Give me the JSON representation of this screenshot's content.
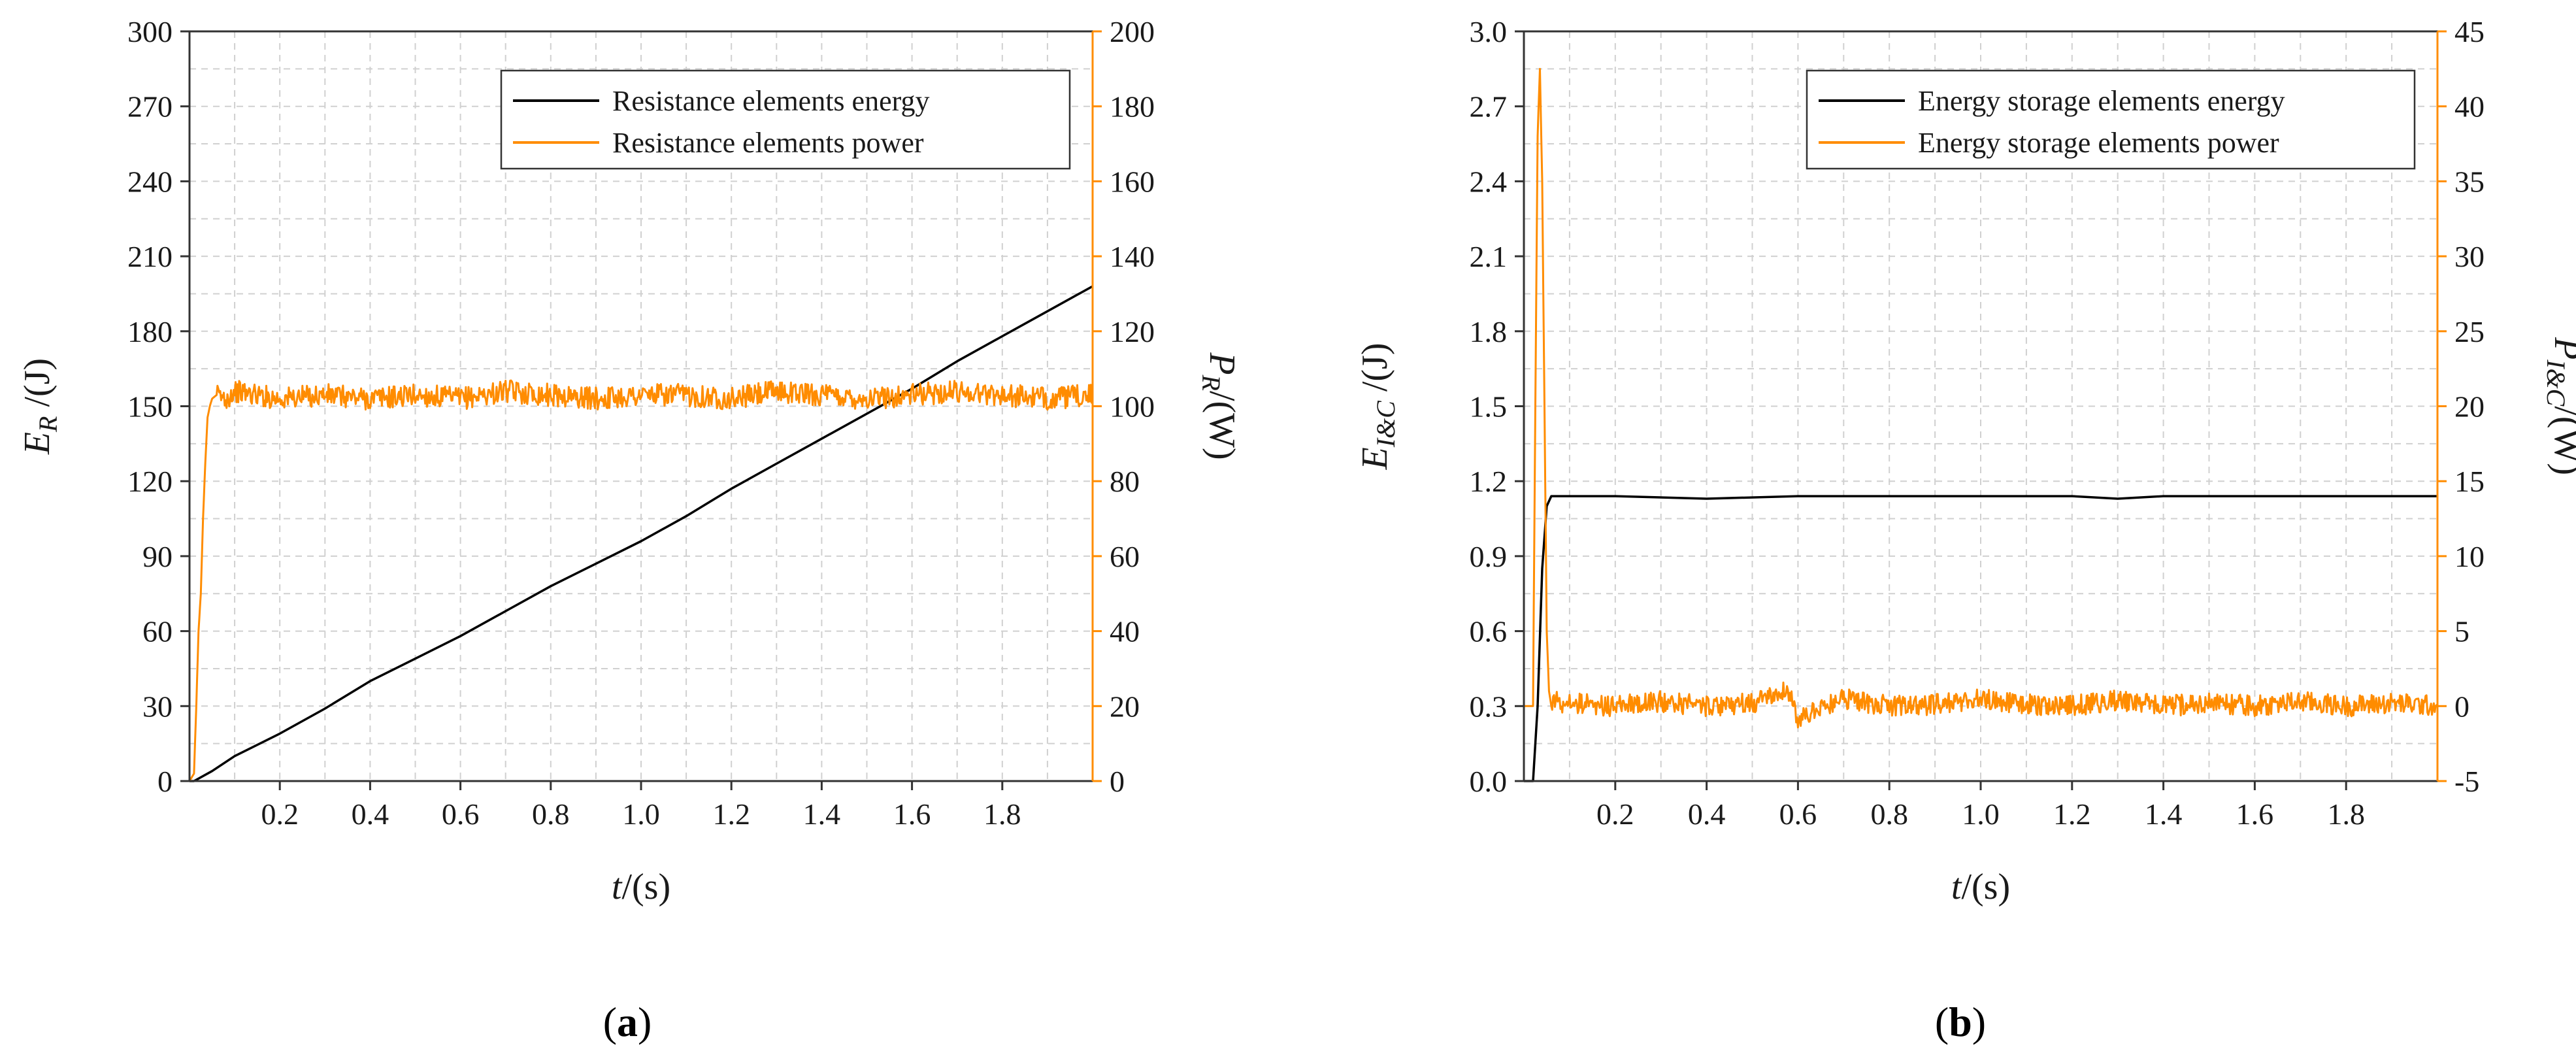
{
  "colors": {
    "energy": "#000000",
    "power": "#ff8c00",
    "grid": "#d0d0d0",
    "axis": "#333333"
  },
  "chart_data": [
    {
      "type": "line",
      "panel_label_prefix": "(",
      "panel_label_letter": "a",
      "panel_label_suffix": ")",
      "xlabel_var": "t",
      "xlabel_unit": "/(s)",
      "ylabel_left_var": "E",
      "ylabel_left_sub": "R",
      "ylabel_left_unit": " /(J)",
      "ylabel_right_var": "P",
      "ylabel_right_sub": "R",
      "ylabel_right_unit": "/(W)",
      "xlim": [
        0,
        2.0
      ],
      "ylim_left": [
        0,
        300
      ],
      "ylim_right": [
        0,
        200
      ],
      "xticks": [
        0.2,
        0.4,
        0.6,
        0.8,
        1.0,
        1.2,
        1.4,
        1.6,
        1.8
      ],
      "xtick_labels": [
        "0.2",
        "0.4",
        "0.6",
        "0.8",
        "1.0",
        "1.2",
        "1.4",
        "1.6",
        "1.8"
      ],
      "yticks_left": [
        0,
        30,
        60,
        90,
        120,
        150,
        180,
        210,
        240,
        270,
        300
      ],
      "ytick_labels_left": [
        "0",
        "30",
        "60",
        "90",
        "120",
        "150",
        "180",
        "210",
        "240",
        "270",
        "300"
      ],
      "yticks_right": [
        0,
        20,
        40,
        60,
        80,
        100,
        120,
        140,
        160,
        180,
        200
      ],
      "ytick_labels_right": [
        "0",
        "20",
        "40",
        "60",
        "80",
        "100",
        "120",
        "140",
        "160",
        "180",
        "200"
      ],
      "legend_position": "top-right",
      "grid": true,
      "series": [
        {
          "name": "Resistance elements energy",
          "axis": "left",
          "color_key": "energy",
          "x": [
            0,
            0.01,
            0.05,
            0.1,
            0.2,
            0.3,
            0.4,
            0.5,
            0.6,
            0.7,
            0.8,
            0.9,
            1.0,
            1.1,
            1.2,
            1.3,
            1.4,
            1.5,
            1.6,
            1.7,
            1.8,
            1.9,
            2.0
          ],
          "values": [
            0,
            0,
            4,
            10,
            19,
            29,
            40,
            49,
            58,
            68,
            78,
            87,
            96,
            106,
            117,
            127,
            137,
            147,
            157,
            168,
            178,
            188,
            198
          ]
        },
        {
          "name": "Resistance elements power",
          "axis": "right",
          "color_key": "power",
          "x": [
            0,
            0.01,
            0.015,
            0.02,
            0.025,
            0.03,
            0.035,
            0.04,
            0.045,
            0.05,
            0.06,
            0.08,
            0.1,
            0.2,
            0.3,
            0.4,
            0.5,
            0.6,
            0.7,
            0.8,
            0.9,
            1.0,
            1.1,
            1.2,
            1.3,
            1.4,
            1.5,
            1.6,
            1.7,
            1.8,
            1.9,
            2.0
          ],
          "values": [
            0,
            2,
            20,
            40,
            50,
            70,
            85,
            97,
            100,
            102,
            103,
            102,
            104,
            102,
            103,
            102,
            103,
            102,
            104,
            103,
            102,
            103,
            103,
            102,
            104,
            103,
            102,
            103,
            104,
            103,
            102,
            103
          ],
          "noise_amplitude": 3
        }
      ]
    },
    {
      "type": "line",
      "panel_label_prefix": "(",
      "panel_label_letter": "b",
      "panel_label_suffix": ")",
      "xlabel_var": "t",
      "xlabel_unit": "/(s)",
      "ylabel_left_var": "E",
      "ylabel_left_sub": "I&C",
      "ylabel_left_unit": " /(J)",
      "ylabel_right_var": "P",
      "ylabel_right_sub": "I&C",
      "ylabel_right_unit": "/(W)",
      "xlim": [
        0,
        2.0
      ],
      "ylim_left": [
        0,
        3.0
      ],
      "ylim_right": [
        -5,
        45
      ],
      "xticks": [
        0.2,
        0.4,
        0.6,
        0.8,
        1.0,
        1.2,
        1.4,
        1.6,
        1.8
      ],
      "xtick_labels": [
        "0.2",
        "0.4",
        "0.6",
        "0.8",
        "1.0",
        "1.2",
        "1.4",
        "1.6",
        "1.8"
      ],
      "yticks_left": [
        0,
        0.3,
        0.6,
        0.9,
        1.2,
        1.5,
        1.8,
        2.1,
        2.4,
        2.7,
        3.0
      ],
      "ytick_labels_left": [
        "0.0",
        "0.3",
        "0.6",
        "0.9",
        "1.2",
        "1.5",
        "1.8",
        "2.1",
        "2.4",
        "2.7",
        "3.0"
      ],
      "yticks_right": [
        -5,
        0,
        5,
        10,
        15,
        20,
        25,
        30,
        35,
        40,
        45
      ],
      "ytick_labels_right": [
        "-5",
        "0",
        "5",
        "10",
        "15",
        "20",
        "25",
        "30",
        "35",
        "40",
        "45"
      ],
      "legend_position": "top-right",
      "grid": true,
      "series": [
        {
          "name": "Energy storage elements energy",
          "axis": "left",
          "color_key": "energy",
          "x": [
            0,
            0.01,
            0.02,
            0.03,
            0.04,
            0.05,
            0.06,
            0.1,
            0.2,
            0.4,
            0.6,
            0.8,
            1.0,
            1.2,
            1.3,
            1.4,
            1.6,
            1.8,
            2.0
          ],
          "values": [
            0,
            0,
            0,
            0.3,
            0.85,
            1.1,
            1.14,
            1.14,
            1.14,
            1.13,
            1.14,
            1.14,
            1.14,
            1.14,
            1.13,
            1.14,
            1.14,
            1.14,
            1.14
          ]
        },
        {
          "name": "Energy storage elements power",
          "axis": "right",
          "color_key": "power",
          "x": [
            0,
            0.01,
            0.02,
            0.025,
            0.03,
            0.035,
            0.04,
            0.045,
            0.05,
            0.055,
            0.06,
            0.07,
            0.1,
            0.2,
            0.3,
            0.4,
            0.5,
            0.58,
            0.6,
            0.7,
            0.8,
            0.9,
            1.0,
            1.1,
            1.2,
            1.3,
            1.4,
            1.5,
            1.6,
            1.7,
            1.8,
            1.9,
            2.0
          ],
          "values": [
            0,
            0,
            0,
            20,
            38,
            42.5,
            35,
            20,
            5,
            1,
            0,
            0.3,
            0.2,
            0,
            0.3,
            0,
            0.2,
            1,
            -0.8,
            0.5,
            0,
            0.1,
            0.5,
            0.1,
            0,
            0.4,
            0,
            0.2,
            0,
            0.3,
            0,
            0.2,
            0
          ],
          "noise_amplitude": 0.7
        }
      ]
    }
  ]
}
